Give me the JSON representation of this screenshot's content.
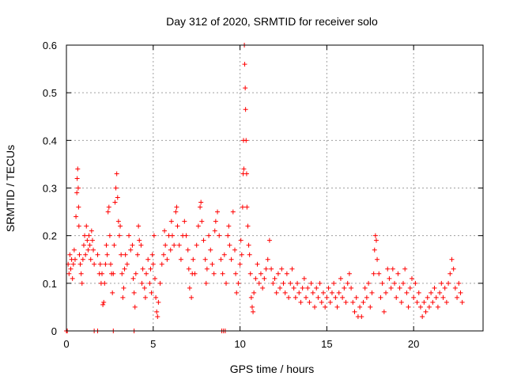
{
  "chart_data": {
    "type": "scatter",
    "title": "Day 312 of 2020, SRMTID for receiver solo",
    "xlabel": "GPS time / hours",
    "ylabel": "SRMTID / TECUs",
    "xlim": [
      0,
      24
    ],
    "ylim": [
      0,
      0.6
    ],
    "x_ticks": [
      0,
      5,
      10,
      15,
      20
    ],
    "x_tick_labels": [
      "0",
      "5",
      "10",
      "15",
      "20"
    ],
    "y_ticks": [
      0,
      0.1,
      0.2,
      0.3,
      0.4,
      0.5,
      0.6
    ],
    "y_tick_labels": [
      "0",
      "0.1",
      "0.2",
      "0.3",
      "0.4",
      "0.5",
      "0.6"
    ],
    "grid": true,
    "marker": "+",
    "color": "#ff0000",
    "series": [
      {
        "name": "SRMTID",
        "points": [
          [
            0.0,
            0.0
          ],
          [
            0.05,
            0.0
          ],
          [
            1.6,
            0.0
          ],
          [
            1.8,
            0.0
          ],
          [
            2.7,
            0.0
          ],
          [
            3.9,
            0.0
          ],
          [
            8.95,
            0.0
          ],
          [
            9.05,
            0.0
          ],
          [
            9.15,
            0.0
          ],
          [
            0.1,
            0.14
          ],
          [
            0.15,
            0.12
          ],
          [
            0.2,
            0.16
          ],
          [
            0.25,
            0.13
          ],
          [
            0.3,
            0.15
          ],
          [
            0.35,
            0.11
          ],
          [
            0.4,
            0.14
          ],
          [
            0.45,
            0.17
          ],
          [
            0.5,
            0.15
          ],
          [
            0.55,
            0.24
          ],
          [
            0.6,
            0.29
          ],
          [
            0.62,
            0.32
          ],
          [
            0.65,
            0.34
          ],
          [
            0.68,
            0.3
          ],
          [
            0.7,
            0.26
          ],
          [
            0.72,
            0.22
          ],
          [
            0.75,
            0.16
          ],
          [
            0.8,
            0.14
          ],
          [
            0.85,
            0.12
          ],
          [
            0.9,
            0.1
          ],
          [
            0.95,
            0.15
          ],
          [
            1.0,
            0.18
          ],
          [
            1.05,
            0.2
          ],
          [
            1.1,
            0.16
          ],
          [
            1.15,
            0.22
          ],
          [
            1.2,
            0.19
          ],
          [
            1.25,
            0.17
          ],
          [
            1.3,
            0.2
          ],
          [
            1.35,
            0.18
          ],
          [
            1.4,
            0.15
          ],
          [
            1.45,
            0.21
          ],
          [
            1.5,
            0.19
          ],
          [
            1.55,
            0.17
          ],
          [
            1.6,
            0.14
          ],
          [
            1.8,
            0.16
          ],
          [
            1.9,
            0.12
          ],
          [
            1.95,
            0.14
          ],
          [
            2.0,
            0.1
          ],
          [
            2.05,
            0.12
          ],
          [
            2.1,
            0.055
          ],
          [
            2.15,
            0.06
          ],
          [
            2.2,
            0.1
          ],
          [
            2.25,
            0.14
          ],
          [
            2.3,
            0.18
          ],
          [
            2.35,
            0.16
          ],
          [
            2.4,
            0.25
          ],
          [
            2.45,
            0.26
          ],
          [
            2.5,
            0.2
          ],
          [
            2.55,
            0.14
          ],
          [
            2.6,
            0.12
          ],
          [
            2.65,
            0.08
          ],
          [
            2.7,
            0.12
          ],
          [
            2.75,
            0.18
          ],
          [
            2.8,
            0.27
          ],
          [
            2.85,
            0.3
          ],
          [
            2.9,
            0.33
          ],
          [
            2.95,
            0.28
          ],
          [
            3.0,
            0.23
          ],
          [
            3.05,
            0.2
          ],
          [
            3.1,
            0.22
          ],
          [
            3.15,
            0.16
          ],
          [
            3.2,
            0.12
          ],
          [
            3.25,
            0.07
          ],
          [
            3.3,
            0.09
          ],
          [
            3.35,
            0.13
          ],
          [
            3.4,
            0.16
          ],
          [
            3.5,
            0.14
          ],
          [
            3.6,
            0.2
          ],
          [
            3.7,
            0.17
          ],
          [
            3.8,
            0.18
          ],
          [
            3.85,
            0.11
          ],
          [
            3.9,
            0.08
          ],
          [
            3.95,
            0.05
          ],
          [
            4.0,
            0.12
          ],
          [
            4.1,
            0.16
          ],
          [
            4.15,
            0.22
          ],
          [
            4.2,
            0.19
          ],
          [
            4.3,
            0.18
          ],
          [
            4.35,
            0.1
          ],
          [
            4.4,
            0.13
          ],
          [
            4.5,
            0.09
          ],
          [
            4.55,
            0.07
          ],
          [
            4.6,
            0.12
          ],
          [
            4.7,
            0.15
          ],
          [
            4.8,
            0.1
          ],
          [
            4.85,
            0.13
          ],
          [
            4.9,
            0.08
          ],
          [
            4.95,
            0.16
          ],
          [
            5.0,
            0.14
          ],
          [
            5.05,
            0.2
          ],
          [
            5.1,
            0.11
          ],
          [
            5.15,
            0.07
          ],
          [
            5.2,
            0.04
          ],
          [
            5.25,
            0.03
          ],
          [
            5.3,
            0.06
          ],
          [
            5.4,
            0.1
          ],
          [
            5.5,
            0.14
          ],
          [
            5.6,
            0.16
          ],
          [
            5.65,
            0.21
          ],
          [
            5.7,
            0.18
          ],
          [
            5.8,
            0.15
          ],
          [
            5.9,
            0.2
          ],
          [
            6.0,
            0.17
          ],
          [
            6.05,
            0.23
          ],
          [
            6.1,
            0.2
          ],
          [
            6.2,
            0.18
          ],
          [
            6.3,
            0.25
          ],
          [
            6.35,
            0.26
          ],
          [
            6.4,
            0.22
          ],
          [
            6.5,
            0.18
          ],
          [
            6.6,
            0.15
          ],
          [
            6.7,
            0.2
          ],
          [
            6.8,
            0.23
          ],
          [
            6.9,
            0.2
          ],
          [
            7.0,
            0.17
          ],
          [
            7.05,
            0.13
          ],
          [
            7.1,
            0.09
          ],
          [
            7.2,
            0.07
          ],
          [
            7.25,
            0.12
          ],
          [
            7.3,
            0.15
          ],
          [
            7.4,
            0.12
          ],
          [
            7.5,
            0.18
          ],
          [
            7.6,
            0.22
          ],
          [
            7.7,
            0.26
          ],
          [
            7.75,
            0.27
          ],
          [
            7.8,
            0.23
          ],
          [
            7.9,
            0.19
          ],
          [
            8.0,
            0.15
          ],
          [
            8.05,
            0.1
          ],
          [
            8.1,
            0.13
          ],
          [
            8.2,
            0.2
          ],
          [
            8.3,
            0.17
          ],
          [
            8.4,
            0.14
          ],
          [
            8.5,
            0.12
          ],
          [
            8.55,
            0.21
          ],
          [
            8.6,
            0.23
          ],
          [
            8.7,
            0.25
          ],
          [
            8.8,
            0.2
          ],
          [
            8.9,
            0.15
          ],
          [
            9.0,
            0.12
          ],
          [
            9.1,
            0.16
          ],
          [
            9.2,
            0.1
          ],
          [
            9.3,
            0.2
          ],
          [
            9.35,
            0.22
          ],
          [
            9.4,
            0.18
          ],
          [
            9.5,
            0.15
          ],
          [
            9.6,
            0.25
          ],
          [
            9.7,
            0.17
          ],
          [
            9.75,
            0.12
          ],
          [
            9.8,
            0.08
          ],
          [
            9.9,
            0.1
          ],
          [
            10.0,
            0.14
          ],
          [
            10.05,
            0.19
          ],
          [
            10.1,
            0.16
          ],
          [
            10.15,
            0.26
          ],
          [
            10.18,
            0.33
          ],
          [
            10.2,
            0.4
          ],
          [
            10.22,
            0.34
          ],
          [
            10.25,
            0.6
          ],
          [
            10.27,
            0.56
          ],
          [
            10.3,
            0.51
          ],
          [
            10.32,
            0.465
          ],
          [
            10.35,
            0.4
          ],
          [
            10.38,
            0.33
          ],
          [
            10.4,
            0.26
          ],
          [
            10.45,
            0.22
          ],
          [
            10.5,
            0.18
          ],
          [
            10.55,
            0.16
          ],
          [
            10.6,
            0.12
          ],
          [
            10.65,
            0.07
          ],
          [
            10.7,
            0.05
          ],
          [
            10.75,
            0.04
          ],
          [
            10.8,
            0.08
          ],
          [
            10.9,
            0.11
          ],
          [
            11.0,
            0.14
          ],
          [
            11.1,
            0.1
          ],
          [
            11.2,
            0.12
          ],
          [
            11.3,
            0.09
          ],
          [
            11.4,
            0.11
          ],
          [
            11.5,
            0.13
          ],
          [
            11.6,
            0.15
          ],
          [
            11.7,
            0.19
          ],
          [
            11.8,
            0.13
          ],
          [
            11.9,
            0.1
          ],
          [
            12.0,
            0.11
          ],
          [
            12.1,
            0.08
          ],
          [
            12.2,
            0.12
          ],
          [
            12.3,
            0.09
          ],
          [
            12.4,
            0.13
          ],
          [
            12.5,
            0.1
          ],
          [
            12.6,
            0.08
          ],
          [
            12.7,
            0.12
          ],
          [
            12.8,
            0.07
          ],
          [
            12.9,
            0.1
          ],
          [
            13.0,
            0.13
          ],
          [
            13.1,
            0.09
          ],
          [
            13.2,
            0.07
          ],
          [
            13.3,
            0.1
          ],
          [
            13.4,
            0.08
          ],
          [
            13.5,
            0.06
          ],
          [
            13.6,
            0.09
          ],
          [
            13.7,
            0.11
          ],
          [
            13.8,
            0.07
          ],
          [
            13.9,
            0.09
          ],
          [
            14.0,
            0.06
          ],
          [
            14.1,
            0.1
          ],
          [
            14.2,
            0.08
          ],
          [
            14.3,
            0.05
          ],
          [
            14.4,
            0.09
          ],
          [
            14.5,
            0.07
          ],
          [
            14.6,
            0.1
          ],
          [
            14.7,
            0.06
          ],
          [
            14.8,
            0.08
          ],
          [
            14.9,
            0.05
          ],
          [
            15.0,
            0.07
          ],
          [
            15.1,
            0.09
          ],
          [
            15.2,
            0.06
          ],
          [
            15.3,
            0.08
          ],
          [
            15.4,
            0.1
          ],
          [
            15.5,
            0.07
          ],
          [
            15.6,
            0.05
          ],
          [
            15.7,
            0.08
          ],
          [
            15.8,
            0.11
          ],
          [
            15.9,
            0.07
          ],
          [
            16.0,
            0.09
          ],
          [
            16.1,
            0.06
          ],
          [
            16.2,
            0.1
          ],
          [
            16.3,
            0.12
          ],
          [
            16.4,
            0.09
          ],
          [
            16.5,
            0.06
          ],
          [
            16.6,
            0.04
          ],
          [
            16.7,
            0.07
          ],
          [
            16.8,
            0.03
          ],
          [
            16.9,
            0.05
          ],
          [
            17.0,
            0.03
          ],
          [
            17.1,
            0.06
          ],
          [
            17.2,
            0.09
          ],
          [
            17.3,
            0.07
          ],
          [
            17.4,
            0.1
          ],
          [
            17.5,
            0.05
          ],
          [
            17.6,
            0.08
          ],
          [
            17.7,
            0.12
          ],
          [
            17.75,
            0.17
          ],
          [
            17.8,
            0.2
          ],
          [
            17.85,
            0.19
          ],
          [
            17.9,
            0.15
          ],
          [
            18.0,
            0.12
          ],
          [
            18.1,
            0.07
          ],
          [
            18.2,
            0.1
          ],
          [
            18.3,
            0.04
          ],
          [
            18.4,
            0.08
          ],
          [
            18.5,
            0.13
          ],
          [
            18.6,
            0.11
          ],
          [
            18.7,
            0.09
          ],
          [
            18.8,
            0.13
          ],
          [
            18.9,
            0.1
          ],
          [
            19.0,
            0.07
          ],
          [
            19.1,
            0.12
          ],
          [
            19.2,
            0.09
          ],
          [
            19.3,
            0.06
          ],
          [
            19.4,
            0.1
          ],
          [
            19.5,
            0.13
          ],
          [
            19.6,
            0.08
          ],
          [
            19.7,
            0.05
          ],
          [
            19.8,
            0.09
          ],
          [
            19.9,
            0.11
          ],
          [
            20.0,
            0.07
          ],
          [
            20.1,
            0.1
          ],
          [
            20.2,
            0.06
          ],
          [
            20.3,
            0.08
          ],
          [
            20.4,
            0.05
          ],
          [
            20.5,
            0.03
          ],
          [
            20.6,
            0.06
          ],
          [
            20.7,
            0.04
          ],
          [
            20.8,
            0.07
          ],
          [
            20.9,
            0.05
          ],
          [
            21.0,
            0.08
          ],
          [
            21.1,
            0.06
          ],
          [
            21.2,
            0.09
          ],
          [
            21.3,
            0.07
          ],
          [
            21.4,
            0.05
          ],
          [
            21.5,
            0.08
          ],
          [
            21.6,
            0.1
          ],
          [
            21.7,
            0.07
          ],
          [
            21.8,
            0.09
          ],
          [
            21.9,
            0.06
          ],
          [
            22.0,
            0.1
          ],
          [
            22.1,
            0.12
          ],
          [
            22.2,
            0.15
          ],
          [
            22.3,
            0.13
          ],
          [
            22.4,
            0.09
          ],
          [
            22.5,
            0.07
          ],
          [
            22.6,
            0.1
          ],
          [
            22.7,
            0.08
          ],
          [
            22.8,
            0.06
          ]
        ]
      }
    ]
  }
}
